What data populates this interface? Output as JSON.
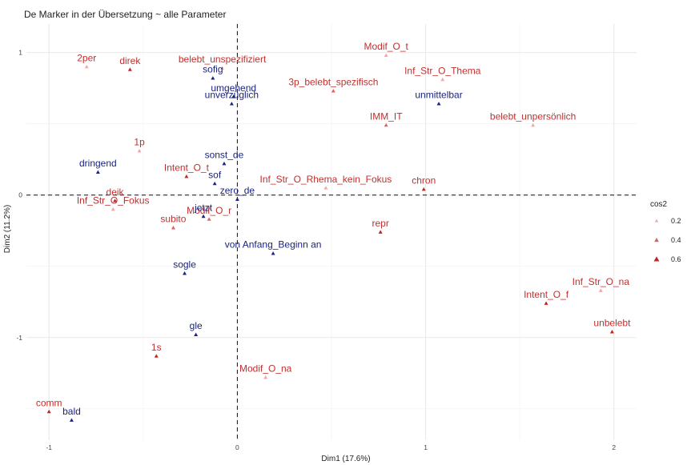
{
  "chart_data": {
    "type": "scatter",
    "title": "De Marker in der Übersetzung ~ alle Parameter",
    "xlabel": "Dim1 (17.6%)",
    "ylabel": "Dim2 (11.2%)",
    "xlim": [
      -1.12,
      2.12
    ],
    "ylim": [
      -1.72,
      1.2
    ],
    "xticks": [
      {
        "v": -1,
        "label": "-1"
      },
      {
        "v": 0,
        "label": "0"
      },
      {
        "v": 1,
        "label": "1"
      },
      {
        "v": 2,
        "label": "2"
      }
    ],
    "yticks": [
      {
        "v": -1,
        "label": "-1"
      },
      {
        "v": 0,
        "label": "0"
      },
      {
        "v": 1,
        "label": "1"
      }
    ],
    "grid": true,
    "reference_lines": {
      "x": 0,
      "y": 0,
      "style": "dashed"
    },
    "legend": {
      "title": "cos2",
      "position": "right",
      "entries": [
        {
          "label": "0.2",
          "color": "#f0a8a8",
          "size": 3
        },
        {
          "label": "0.4",
          "color": "#e06060",
          "size": 4
        },
        {
          "label": "0.6",
          "color": "#c42222",
          "size": 5
        }
      ]
    },
    "colors": {
      "variables": "#c0302e",
      "markers": "#1a237e"
    },
    "series": [
      {
        "group": "variables",
        "points": [
          {
            "label": "2per",
            "x": -0.8,
            "y": 0.9,
            "cos2": 0.2
          },
          {
            "label": "direk",
            "x": -0.57,
            "y": 0.88,
            "cos2": 0.5
          },
          {
            "label": "belebt_unspezifiziert",
            "x": -0.08,
            "y": 0.89,
            "cos2": 0.2
          },
          {
            "label": "Modif_O_t",
            "x": 0.79,
            "y": 0.98,
            "cos2": 0.2
          },
          {
            "label": "Inf_Str_O_Thema",
            "x": 1.09,
            "y": 0.81,
            "cos2": 0.2
          },
          {
            "label": "3p_belebt_spezifisch",
            "x": 0.51,
            "y": 0.73,
            "cos2": 0.3
          },
          {
            "label": "IMM_IT",
            "x": 0.79,
            "y": 0.49,
            "cos2": 0.3
          },
          {
            "label": "belebt_unpersönlich",
            "x": 1.57,
            "y": 0.49,
            "cos2": 0.2
          },
          {
            "label": "1p",
            "x": -0.52,
            "y": 0.31,
            "cos2": 0.2
          },
          {
            "label": "Intent_O_t",
            "x": -0.27,
            "y": 0.13,
            "cos2": 0.5
          },
          {
            "label": "Inf_Str_O_Rhema_kein_Fokus",
            "x": 0.47,
            "y": 0.05,
            "cos2": 0.2
          },
          {
            "label": "chron",
            "x": 0.99,
            "y": 0.04,
            "cos2": 0.5
          },
          {
            "label": "deik",
            "x": -0.65,
            "y": -0.04,
            "cos2": 0.5
          },
          {
            "label": "Inf_Str_O_Fokus",
            "x": -0.66,
            "y": -0.1,
            "cos2": 0.2
          },
          {
            "label": "Modif_O_r",
            "x": -0.15,
            "y": -0.17,
            "cos2": 0.3
          },
          {
            "label": "subito",
            "x": -0.34,
            "y": -0.23,
            "cos2": 0.3
          },
          {
            "label": "repr",
            "x": 0.76,
            "y": -0.26,
            "cos2": 0.5
          },
          {
            "label": "Inf_Str_O_na",
            "x": 1.93,
            "y": -0.67,
            "cos2": 0.2
          },
          {
            "label": "Intent_O_f",
            "x": 1.64,
            "y": -0.76,
            "cos2": 0.5
          },
          {
            "label": "unbelebt",
            "x": 1.99,
            "y": -0.96,
            "cos2": 0.6
          },
          {
            "label": "1s",
            "x": -0.43,
            "y": -1.13,
            "cos2": 0.5
          },
          {
            "label": "Modif_O_na",
            "x": 0.15,
            "y": -1.28,
            "cos2": 0.2
          },
          {
            "label": "comm",
            "x": -1.0,
            "y": -1.52,
            "cos2": 0.6
          }
        ]
      },
      {
        "group": "markers",
        "points": [
          {
            "label": "sofig",
            "x": -0.13,
            "y": 0.82,
            "cos2": 0.5
          },
          {
            "label": "umgehend",
            "x": -0.02,
            "y": 0.69,
            "cos2": 0.5
          },
          {
            "label": "unverzüglich",
            "x": -0.03,
            "y": 0.64,
            "cos2": 0.5
          },
          {
            "label": "unmittelbar",
            "x": 1.07,
            "y": 0.64,
            "cos2": 0.5
          },
          {
            "label": "sonst_de",
            "x": -0.07,
            "y": 0.22,
            "cos2": 0.5
          },
          {
            "label": "dringend",
            "x": -0.74,
            "y": 0.16,
            "cos2": 0.5
          },
          {
            "label": "sof",
            "x": -0.12,
            "y": 0.08,
            "cos2": 0.5
          },
          {
            "label": "zero_de",
            "x": 0.0,
            "y": -0.03,
            "cos2": 0.5
          },
          {
            "label": "jetzt",
            "x": -0.18,
            "y": -0.15,
            "cos2": 0.5
          },
          {
            "label": "von Anfang_Beginn an",
            "x": 0.19,
            "y": -0.41,
            "cos2": 0.5
          },
          {
            "label": "sogle",
            "x": -0.28,
            "y": -0.55,
            "cos2": 0.5
          },
          {
            "label": "gle",
            "x": -0.22,
            "y": -0.98,
            "cos2": 0.5
          },
          {
            "label": "bald",
            "x": -0.88,
            "y": -1.58,
            "cos2": 0.5
          }
        ]
      }
    ]
  }
}
